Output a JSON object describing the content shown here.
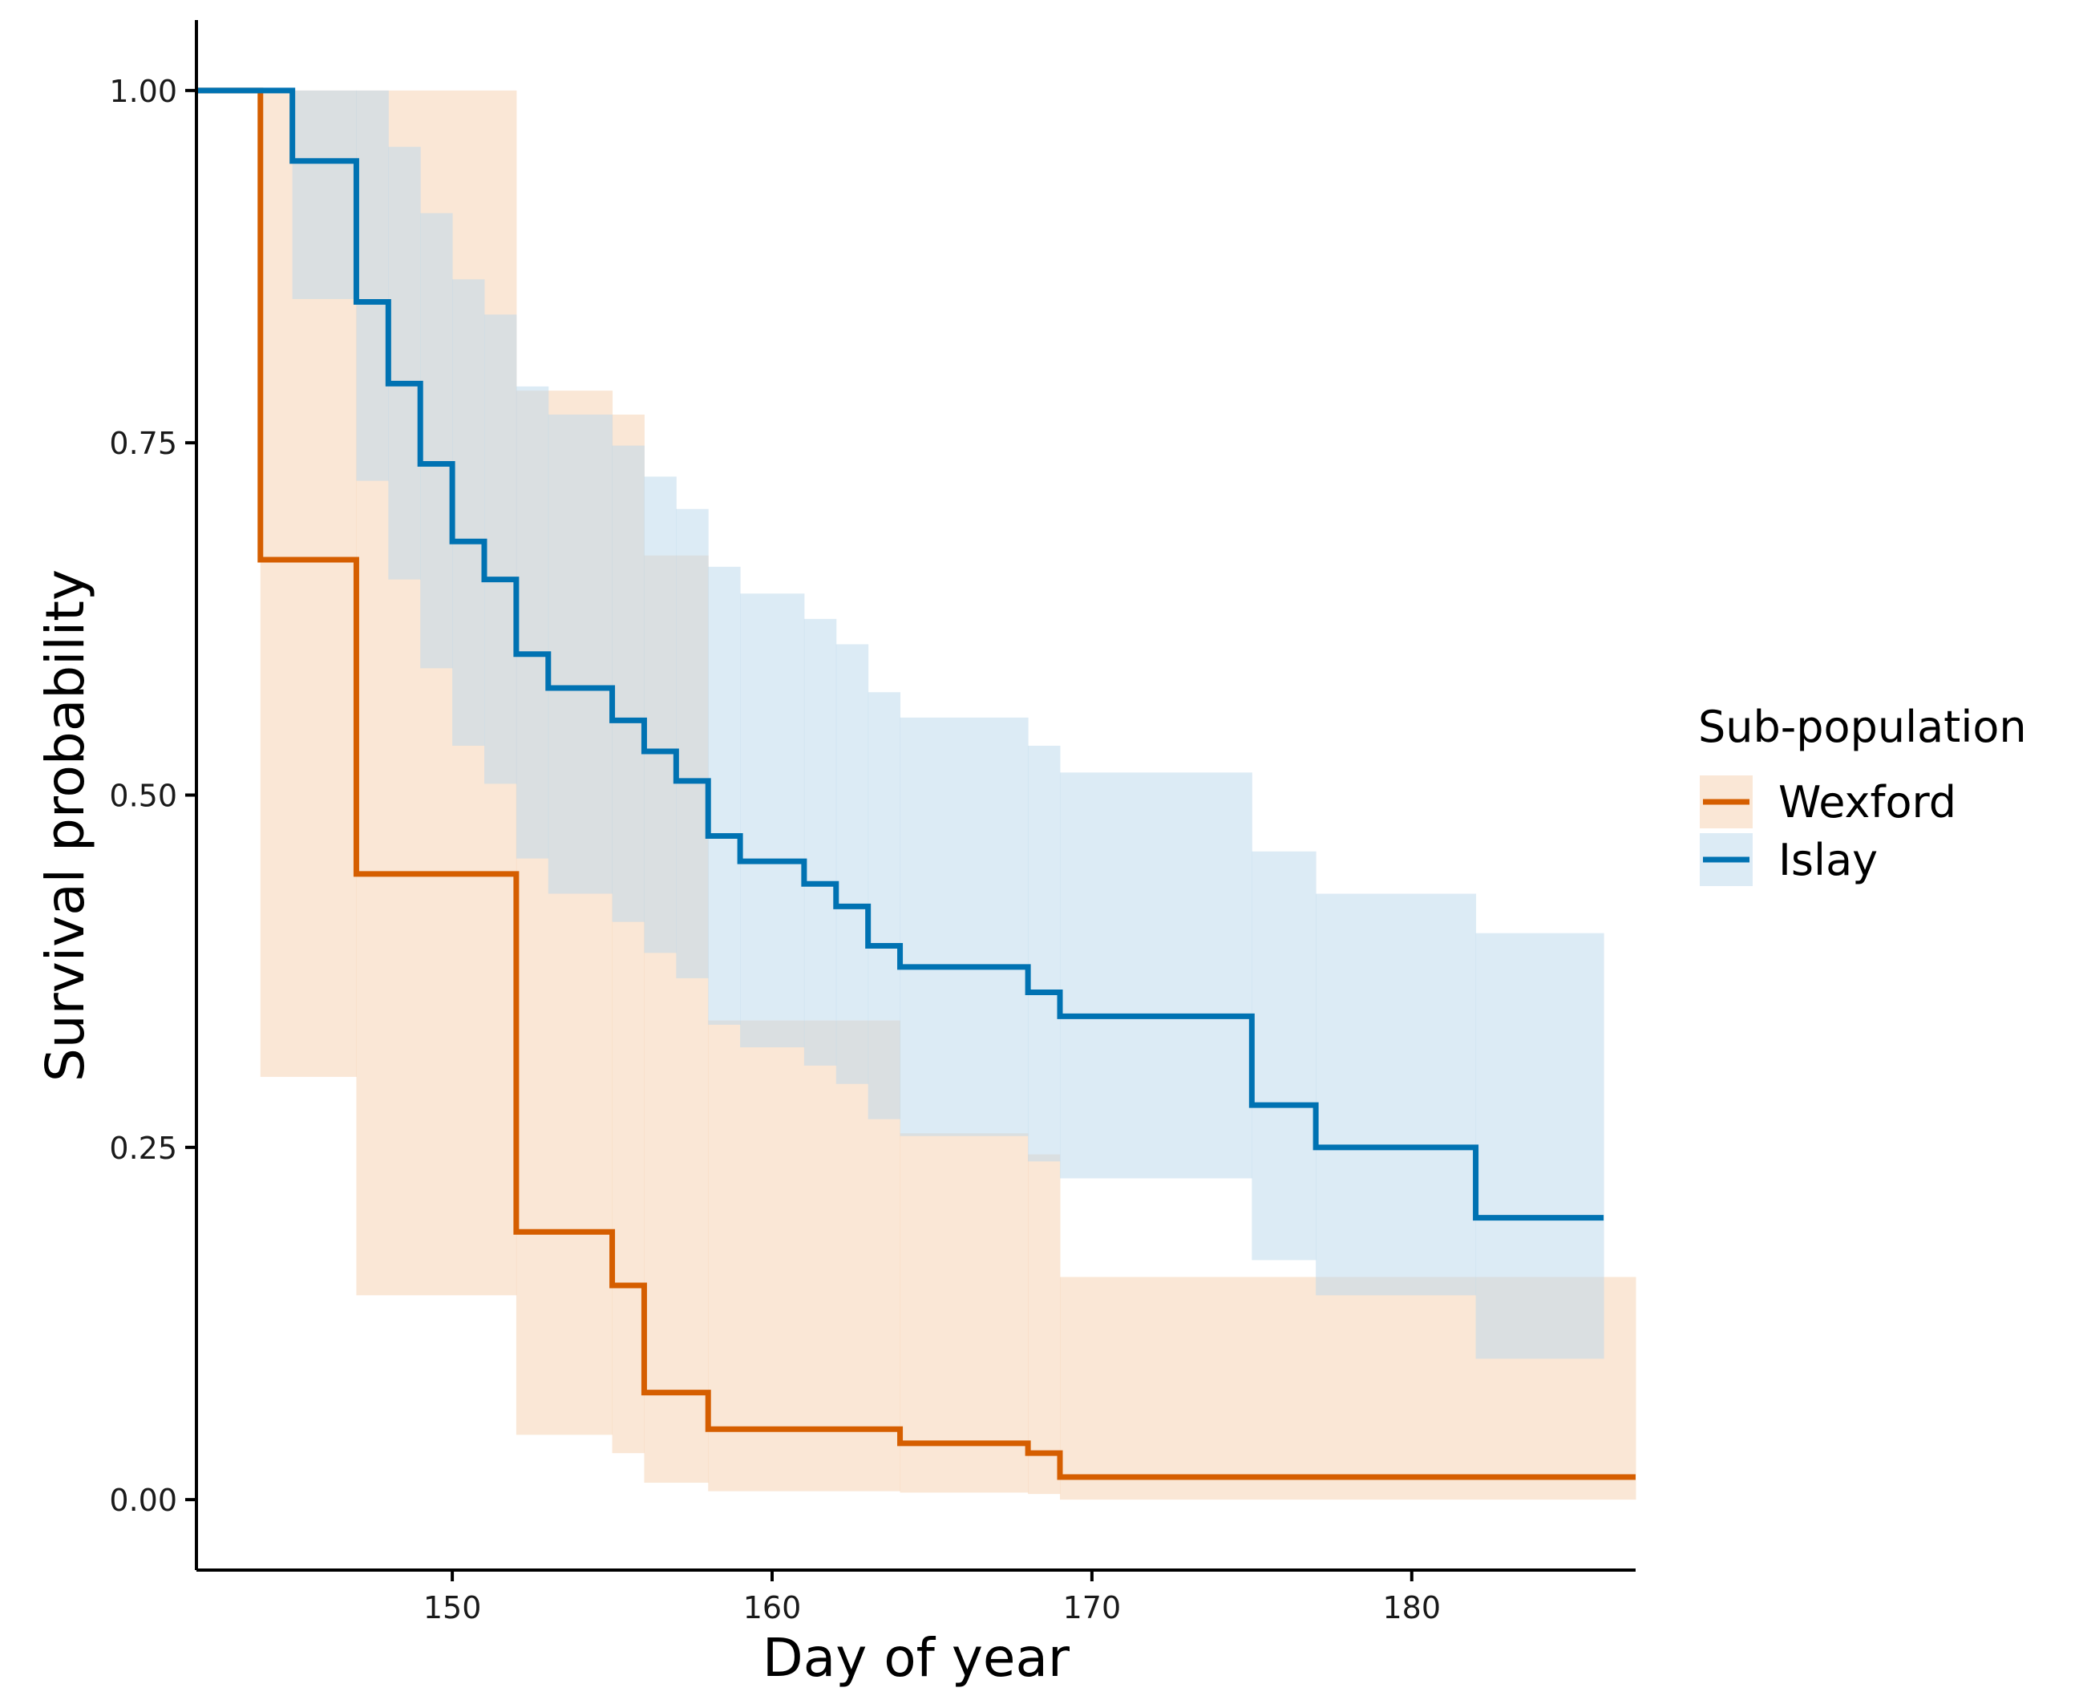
{
  "chart_data": {
    "type": "line",
    "subtype": "kaplan-meier step survival curve with confidence bands",
    "xlabel": "Day of year",
    "ylabel": "Survival probability",
    "xlim": [
      142,
      187
    ],
    "ylim": [
      -0.05,
      1.05
    ],
    "x_ticks": [
      150,
      160,
      170,
      180
    ],
    "y_ticks": [
      0,
      0.25,
      0.5,
      0.75,
      1
    ],
    "y_tick_labels": [
      "0.00",
      "0.25",
      "0.50",
      "0.75",
      "1.00"
    ],
    "grid": false,
    "legend": {
      "title": "Sub-population",
      "position": "right"
    },
    "series": [
      {
        "name": "Wexford",
        "color": "#D55E00",
        "band_color": "#F5CFAE",
        "band_opacity": 0.5,
        "steps": [
          {
            "x": 142,
            "y": 1.0,
            "lower": 1.0,
            "upper": 1.0
          },
          {
            "x": 144,
            "y": 0.667,
            "lower": 0.3,
            "upper": 1.0
          },
          {
            "x": 147,
            "y": 0.444,
            "lower": 0.145,
            "upper": 1.0
          },
          {
            "x": 152,
            "y": 0.19,
            "lower": 0.046,
            "upper": 0.787
          },
          {
            "x": 155,
            "y": 0.152,
            "lower": 0.033,
            "upper": 0.77
          },
          {
            "x": 156,
            "y": 0.076,
            "lower": 0.012,
            "upper": 0.67
          },
          {
            "x": 158,
            "y": 0.05,
            "lower": 0.006,
            "upper": 0.34
          },
          {
            "x": 164,
            "y": 0.04,
            "lower": 0.005,
            "upper": 0.26
          },
          {
            "x": 168,
            "y": 0.033,
            "lower": 0.004,
            "upper": 0.245
          },
          {
            "x": 169,
            "y": 0.016,
            "lower": 0.0,
            "upper": 0.158
          },
          {
            "x": 187,
            "y": 0.016,
            "lower": 0.0,
            "upper": 0.158
          }
        ]
      },
      {
        "name": "Islay",
        "color": "#0072B2",
        "band_color": "#B9D8EC",
        "band_opacity": 0.5,
        "steps": [
          {
            "x": 142,
            "y": 1.0,
            "lower": 1.0,
            "upper": 1.0
          },
          {
            "x": 145,
            "y": 0.95,
            "lower": 0.852,
            "upper": 1.0
          },
          {
            "x": 147,
            "y": 0.85,
            "lower": 0.723,
            "upper": 1.0
          },
          {
            "x": 148,
            "y": 0.792,
            "lower": 0.653,
            "upper": 0.96
          },
          {
            "x": 149,
            "y": 0.735,
            "lower": 0.59,
            "upper": 0.913
          },
          {
            "x": 150,
            "y": 0.68,
            "lower": 0.535,
            "upper": 0.866
          },
          {
            "x": 151,
            "y": 0.653,
            "lower": 0.508,
            "upper": 0.841
          },
          {
            "x": 152,
            "y": 0.6,
            "lower": 0.455,
            "upper": 0.79
          },
          {
            "x": 153,
            "y": 0.576,
            "lower": 0.43,
            "upper": 0.77
          },
          {
            "x": 155,
            "y": 0.553,
            "lower": 0.41,
            "upper": 0.748
          },
          {
            "x": 156,
            "y": 0.531,
            "lower": 0.388,
            "upper": 0.726
          },
          {
            "x": 157,
            "y": 0.51,
            "lower": 0.37,
            "upper": 0.703
          },
          {
            "x": 158,
            "y": 0.471,
            "lower": 0.337,
            "upper": 0.662
          },
          {
            "x": 159,
            "y": 0.453,
            "lower": 0.321,
            "upper": 0.643
          },
          {
            "x": 161,
            "y": 0.437,
            "lower": 0.308,
            "upper": 0.625
          },
          {
            "x": 162,
            "y": 0.421,
            "lower": 0.295,
            "upper": 0.607
          },
          {
            "x": 163,
            "y": 0.393,
            "lower": 0.27,
            "upper": 0.573
          },
          {
            "x": 164,
            "y": 0.378,
            "lower": 0.258,
            "upper": 0.555
          },
          {
            "x": 168,
            "y": 0.36,
            "lower": 0.24,
            "upper": 0.535
          },
          {
            "x": 169,
            "y": 0.343,
            "lower": 0.228,
            "upper": 0.516
          },
          {
            "x": 175,
            "y": 0.28,
            "lower": 0.17,
            "upper": 0.46
          },
          {
            "x": 177,
            "y": 0.25,
            "lower": 0.145,
            "upper": 0.43
          },
          {
            "x": 182,
            "y": 0.2,
            "lower": 0.1,
            "upper": 0.402
          },
          {
            "x": 186,
            "y": 0.2,
            "lower": 0.1,
            "upper": 0.402
          }
        ]
      }
    ]
  }
}
